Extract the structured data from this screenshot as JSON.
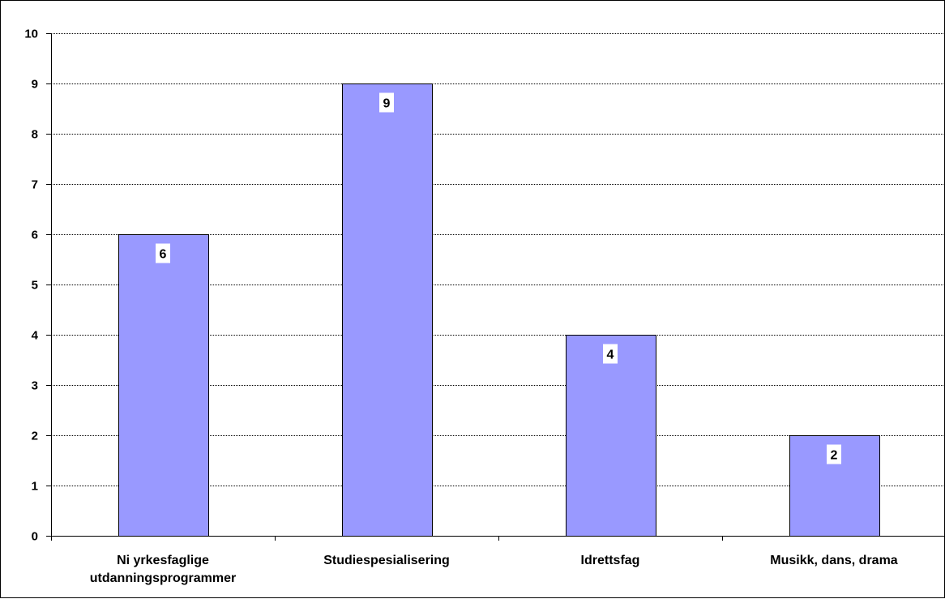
{
  "chart_data": {
    "type": "bar",
    "categories": [
      [
        "Ni yrkesfaglige",
        "utdanningsprogrammer"
      ],
      [
        "Studiespesialisering"
      ],
      [
        "Idrettsfag"
      ],
      [
        "Musikk, dans, drama"
      ]
    ],
    "values": [
      6,
      9,
      4,
      2
    ],
    "data_labels": [
      "6",
      "9",
      "4",
      "2"
    ],
    "ylim": [
      0,
      10
    ],
    "yticks": [
      "0",
      "1",
      "2",
      "3",
      "4",
      "5",
      "6",
      "7",
      "8",
      "9",
      "10"
    ],
    "grid": true,
    "legend": "none",
    "colors": {
      "bar_fill": "#9999ff",
      "bar_stroke": "#000000",
      "grid": "#000000",
      "label_bg": "#ffffff"
    }
  }
}
